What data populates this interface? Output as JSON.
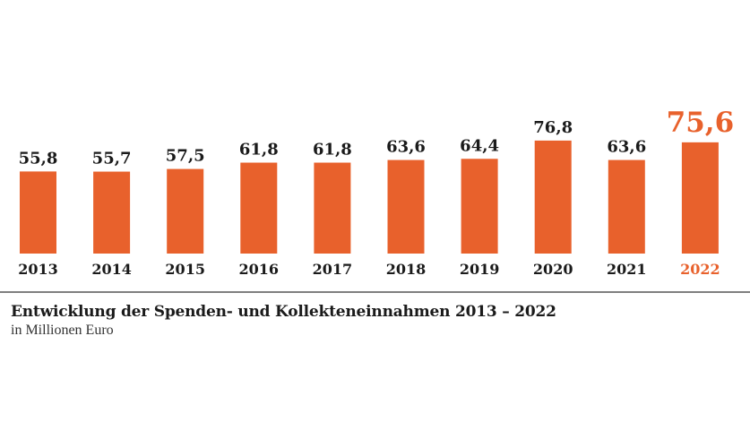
{
  "chart_data": {
    "type": "bar",
    "categories": [
      "2013",
      "2014",
      "2015",
      "2016",
      "2017",
      "2018",
      "2019",
      "2020",
      "2021",
      "2022"
    ],
    "values": [
      55.8,
      55.7,
      57.5,
      61.8,
      61.8,
      63.6,
      64.4,
      76.8,
      63.6,
      75.6
    ],
    "value_labels": [
      "55,8",
      "55,7",
      "57,5",
      "61,8",
      "61,8",
      "63,6",
      "64,4",
      "76,8",
      "63,6",
      "75,6"
    ],
    "highlight_index": 9,
    "title": "Entwicklung der Spenden- und Kollekteneinnahmen 2013 – 2022",
    "subtitle": "in Millionen Euro",
    "ylim": [
      0,
      80
    ],
    "grid": false,
    "legend": "none"
  },
  "colors": {
    "bar": "#e8612c",
    "label": "#1a1a1a",
    "highlight": "#e8612c",
    "baseline": "#333333"
  }
}
